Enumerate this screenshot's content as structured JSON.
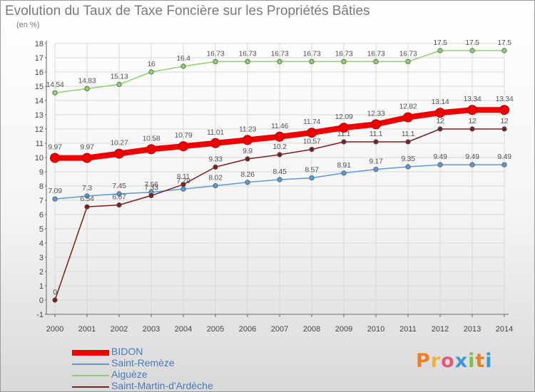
{
  "title": "Evolution du Taux de Taxe Foncière sur les Propriétés Bâties",
  "subtitle": "(en %)",
  "logo": {
    "text": "Proxiti",
    "colors": [
      "#e8812c",
      "#f0b13a",
      "#e05a7a",
      "#3a9ad6",
      "#7cc24a",
      "#e8812c",
      "#3a9ad6"
    ]
  },
  "chart_data": {
    "type": "line",
    "title": "Evolution du Taux de Taxe Foncière sur les Propriétés Bâties",
    "ylabel": "(en %)",
    "xlabel": "",
    "ylim": [
      -1,
      18
    ],
    "yticks": [
      -1,
      0,
      1,
      2,
      3,
      4,
      5,
      6,
      7,
      8,
      9,
      10,
      11,
      12,
      13,
      14,
      15,
      16,
      17,
      18
    ],
    "x": [
      2000,
      2001,
      2002,
      2003,
      2004,
      2005,
      2006,
      2007,
      2008,
      2009,
      2010,
      2011,
      2012,
      2013,
      2014
    ],
    "grid": true,
    "legend": "bottom",
    "series": [
      {
        "name": "BIDON",
        "color": "#ee0000",
        "bold": true,
        "values": [
          9.97,
          9.97,
          10.27,
          10.58,
          10.79,
          11.01,
          11.23,
          11.46,
          11.74,
          12.09,
          12.33,
          12.82,
          13.14,
          13.34,
          13.34
        ],
        "labels": [
          "9.97",
          "9.97",
          "10.27",
          "10.58",
          "10.79",
          "11.01",
          "11.23",
          "11.46",
          "11.74",
          "12.09",
          "12.33",
          "12.82",
          "13.14",
          "13.34",
          "13.34"
        ]
      },
      {
        "name": "Saint-Remèze",
        "color": "#5b9bd5",
        "values": [
          7.09,
          7.3,
          7.45,
          7.56,
          7.79,
          8.02,
          8.26,
          8.45,
          8.57,
          8.91,
          9.17,
          9.35,
          9.49,
          9.49,
          9.49
        ],
        "labels": [
          "7.09",
          "7.3",
          "7.45",
          "7.56",
          "7.79",
          "8.02",
          "8.26",
          "8.45",
          "8.57",
          "8.91",
          "9.17",
          "9.35",
          "9.49",
          "9.49",
          "9.49"
        ]
      },
      {
        "name": "Aiguèze",
        "color": "#8fd16a",
        "values": [
          14.54,
          14.83,
          15.13,
          16,
          16.4,
          16.73,
          16.73,
          16.73,
          16.73,
          16.73,
          16.73,
          16.73,
          17.5,
          17.5,
          17.5
        ],
        "labels": [
          "14.54",
          "14.83",
          "15.13",
          "16",
          "16.4",
          "16.73",
          "16.73",
          "16.73",
          "16.73",
          "16.73",
          "16.73",
          "16.73",
          "17.5",
          "17.5",
          "17.5"
        ]
      },
      {
        "name": "Saint-Martin-d'Ardèche",
        "color": "#7a1f1f",
        "values": [
          0,
          6.54,
          6.67,
          7.33,
          8.11,
          9.33,
          9.9,
          10.2,
          10.57,
          11.1,
          11.1,
          11.1,
          12,
          12,
          12
        ],
        "labels": [
          "0",
          "6.54",
          "6.67",
          "7.33",
          "8.11",
          "9.33",
          "9.9",
          "10.2",
          "10.57",
          "11.1",
          "11.1",
          "11.1",
          "12",
          "12",
          "12"
        ]
      }
    ]
  }
}
